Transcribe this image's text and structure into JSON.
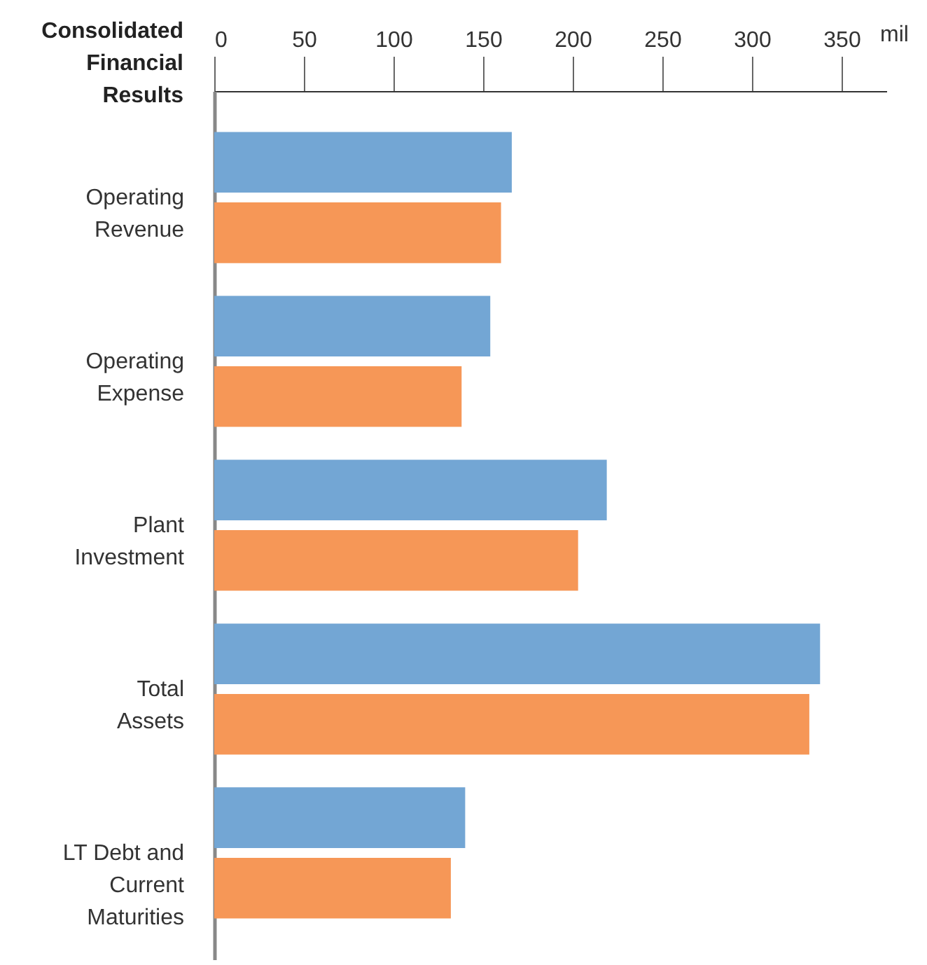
{
  "chart_data": {
    "type": "bar",
    "orientation": "horizontal",
    "title": "Consolidated Financial Results",
    "xlabel": "mil",
    "categories": [
      "Operating\nRevenue",
      "Operating\nExpense",
      "Plant\nInvestment",
      "Total\nAssets",
      "LT Debt and\nCurrent\nMaturities"
    ],
    "series": [
      {
        "color": "#73a6d4",
        "values": [
          166,
          154,
          219,
          338,
          140
        ]
      },
      {
        "color": "#f69757",
        "values": [
          160,
          138,
          203,
          332,
          132
        ]
      }
    ],
    "xlim": [
      0,
      375
    ],
    "xticks": [
      0,
      50,
      100,
      150,
      200,
      250,
      300,
      350
    ],
    "grid": false
  }
}
